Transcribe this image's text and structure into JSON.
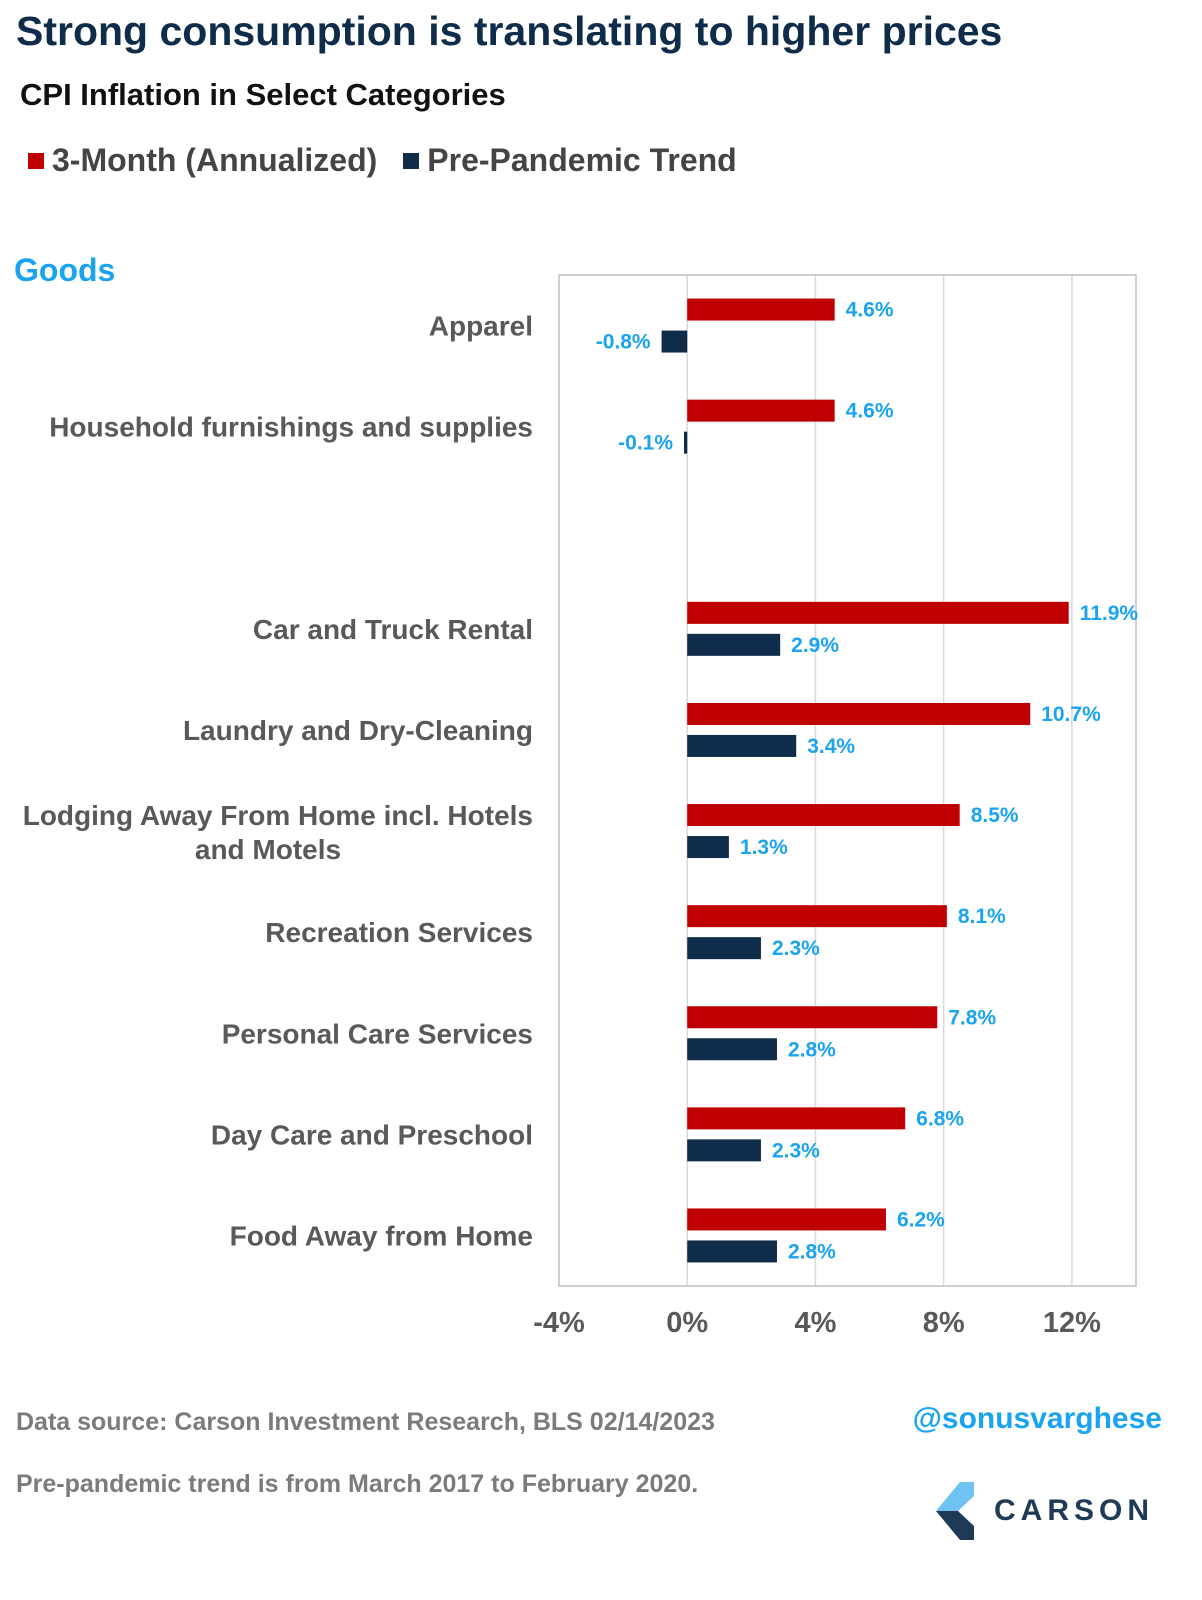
{
  "title": "Strong consumption is translating to higher prices",
  "subtitle": "CPI Inflation in Select Categories",
  "section_label": "Goods",
  "colors": {
    "three_month": "#c00000",
    "pre_pandemic": "#0f2d4a",
    "label_blue": "#1aa3f0",
    "gridline": "#d9d9d9",
    "axis_text": "#595959"
  },
  "footer": {
    "source": "Data source: Carson Investment Research, BLS   02/14/2023",
    "note": "Pre-pandemic trend is from March 2017 to February 2020.",
    "handle": "@sonusvarghese",
    "brand": "CARSON"
  },
  "chart_data": {
    "type": "bar",
    "orientation": "horizontal",
    "categories": [
      "Apparel",
      "Household furnishings and supplies",
      "",
      "Car and Truck Rental",
      "Laundry and Dry-Cleaning",
      "Lodging Away From Home incl. Hotels and Motels",
      "Recreation Services",
      "Personal Care Services",
      "Day Care and Preschool",
      "Food Away from Home"
    ],
    "series": [
      {
        "name": "3-Month (Annualized)",
        "values": [
          4.6,
          4.6,
          null,
          11.9,
          10.7,
          8.5,
          8.1,
          7.8,
          6.8,
          6.2
        ],
        "labels": [
          "4.6%",
          "4.6%",
          "",
          "11.9%",
          "10.7%",
          "8.5%",
          "8.1%",
          "7.8%",
          "6.8%",
          "6.2%"
        ]
      },
      {
        "name": "Pre-Pandemic Trend",
        "values": [
          -0.8,
          -0.1,
          null,
          2.9,
          3.4,
          1.3,
          2.3,
          2.8,
          2.3,
          2.8
        ],
        "labels": [
          "-0.8%",
          "-0.1%",
          "",
          "2.9%",
          "3.4%",
          "1.3%",
          "2.3%",
          "2.8%",
          "2.3%",
          "2.8%"
        ]
      }
    ],
    "xlim": [
      -4,
      14
    ],
    "xticks": [
      -4,
      0,
      4,
      8,
      12
    ],
    "xtick_labels": [
      "-4%",
      "0%",
      "4%",
      "8%",
      "12%"
    ],
    "grid": true,
    "legend_position": "top-left"
  }
}
